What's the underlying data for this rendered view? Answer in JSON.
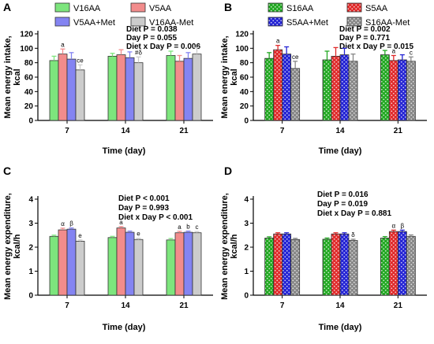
{
  "chart_data": [
    {
      "panel": "A",
      "type": "bar",
      "xlabel": "Time (day)",
      "ylabel": "Mean energy intake, kcal",
      "ylim": [
        0,
        120
      ],
      "yticks": [
        0,
        20,
        40,
        60,
        80,
        100,
        120
      ],
      "categories": [
        "7",
        "14",
        "21"
      ],
      "legend": [
        "V16AA",
        "V5AA",
        "V5AA+Met",
        "V16AA-Met"
      ],
      "stats": [
        "Diet P = 0.038",
        "Day P = 0.055",
        "Diet x Day P = 0.006"
      ],
      "series": [
        {
          "name": "V16AA",
          "values": [
            83,
            89,
            90
          ],
          "errors": [
            6,
            4,
            6
          ],
          "color": "#7de57d",
          "pattern": "solid"
        },
        {
          "name": "V5AA",
          "values": [
            92,
            91,
            82
          ],
          "errors": [
            7,
            7,
            8
          ],
          "color": "#f28c8c",
          "pattern": "solid"
        },
        {
          "name": "V5AA+Met",
          "values": [
            85,
            87,
            86
          ],
          "errors": [
            9,
            8,
            8
          ],
          "color": "#8484f2",
          "pattern": "solid"
        },
        {
          "name": "V16AA-Met",
          "values": [
            70,
            80,
            92
          ],
          "errors": [
            7,
            8,
            9
          ],
          "color": "#cccccc",
          "pattern": "solid"
        }
      ],
      "annotations": [
        {
          "category": "7",
          "series": "V5AA",
          "text": "a"
        },
        {
          "category": "7",
          "series": "V16AA-Met",
          "text": "ce"
        },
        {
          "category": "14",
          "series": "V16AA-Met",
          "text": "#δ"
        }
      ]
    },
    {
      "panel": "B",
      "type": "bar",
      "xlabel": "Time (day)",
      "ylabel": "Mean energy intake, kcal",
      "ylim": [
        0,
        120
      ],
      "yticks": [
        0,
        20,
        40,
        60,
        80,
        100,
        120
      ],
      "categories": [
        "7",
        "14",
        "21"
      ],
      "legend": [
        "S16AA",
        "S5AA",
        "S5AA+Met",
        "S16AA-Met"
      ],
      "stats": [
        "Diet P = 0.002",
        "Day P = 0.771",
        "Diet x Day P = 0.015"
      ],
      "series": [
        {
          "name": "S16AA",
          "values": [
            86,
            84,
            91
          ],
          "errors": [
            8,
            12,
            6
          ],
          "color": "#22a822",
          "pattern": "dots"
        },
        {
          "name": "S5AA",
          "values": [
            98,
            89,
            83
          ],
          "errors": [
            6,
            12,
            7
          ],
          "color": "#e02b2b",
          "pattern": "dots"
        },
        {
          "name": "S5AA+Met",
          "values": [
            92,
            91,
            84
          ],
          "errors": [
            10,
            9,
            7
          ],
          "color": "#2424d4",
          "pattern": "dots"
        },
        {
          "name": "S16AA-Met",
          "values": [
            72,
            82,
            82
          ],
          "errors": [
            10,
            10,
            6
          ],
          "color": "#888888",
          "pattern": "dots"
        }
      ],
      "annotations": [
        {
          "category": "7",
          "series": "S5AA",
          "text": "a"
        },
        {
          "category": "7",
          "series": "S16AA-Met",
          "text": "ce"
        },
        {
          "category": "21",
          "series": "S5AA",
          "text": "a"
        },
        {
          "category": "21",
          "series": "S16AA-Met",
          "text": "c"
        }
      ]
    },
    {
      "panel": "C",
      "type": "bar",
      "xlabel": "Time (day)",
      "ylabel": "Mean energy expenditure, kcal/h",
      "ylim": [
        0,
        4
      ],
      "yticks": [
        0,
        1,
        2,
        3,
        4
      ],
      "categories": [
        "7",
        "14",
        "21"
      ],
      "stats": [
        "Diet P < 0.001",
        "Day P = 0.993",
        "Diet x Day P < 0.001"
      ],
      "series": [
        {
          "name": "V16AA",
          "values": [
            2.45,
            2.4,
            2.3
          ],
          "errors": [
            0.05,
            0.05,
            0.06
          ],
          "color": "#7de57d",
          "pattern": "solid"
        },
        {
          "name": "V5AA",
          "values": [
            2.72,
            2.8,
            2.6
          ],
          "errors": [
            0.07,
            0.06,
            0.06
          ],
          "color": "#f28c8c",
          "pattern": "solid"
        },
        {
          "name": "V5AA+Met",
          "values": [
            2.75,
            2.62,
            2.62
          ],
          "errors": [
            0.05,
            0.05,
            0.05
          ],
          "color": "#8484f2",
          "pattern": "solid"
        },
        {
          "name": "V16AA-Met",
          "values": [
            2.25,
            2.32,
            2.6
          ],
          "errors": [
            0.05,
            0.05,
            0.05
          ],
          "color": "#cccccc",
          "pattern": "solid"
        }
      ],
      "annotations": [
        {
          "category": "7",
          "series": "V5AA",
          "text": "α"
        },
        {
          "category": "7",
          "series": "V5AA+Met",
          "text": "β"
        },
        {
          "category": "7",
          "series": "V16AA-Met",
          "text": "e"
        },
        {
          "category": "14",
          "series": "V5AA",
          "text": "a"
        },
        {
          "category": "14",
          "series": "V16AA-Met",
          "text": "e"
        },
        {
          "category": "21",
          "series": "V5AA",
          "text": "a"
        },
        {
          "category": "21",
          "series": "V5AA+Met",
          "text": "b"
        },
        {
          "category": "21",
          "series": "V16AA-Met",
          "text": "c"
        }
      ]
    },
    {
      "panel": "D",
      "type": "bar",
      "xlabel": "Time (day)",
      "ylabel": "Mean energy expenditure, kcal/h",
      "ylim": [
        0,
        4
      ],
      "yticks": [
        0,
        1,
        2,
        3,
        4
      ],
      "categories": [
        "7",
        "14",
        "21"
      ],
      "stats": [
        "Diet P = 0.016",
        "Day P = 0.019",
        "Diet x Day P = 0.881"
      ],
      "series": [
        {
          "name": "S16AA",
          "values": [
            2.38,
            2.33,
            2.38
          ],
          "errors": [
            0.05,
            0.05,
            0.06
          ],
          "color": "#22a822",
          "pattern": "dots"
        },
        {
          "name": "S5AA",
          "values": [
            2.55,
            2.55,
            2.65
          ],
          "errors": [
            0.05,
            0.05,
            0.06
          ],
          "color": "#e02b2b",
          "pattern": "dots"
        },
        {
          "name": "S5AA+Met",
          "values": [
            2.55,
            2.55,
            2.65
          ],
          "errors": [
            0.05,
            0.05,
            0.06
          ],
          "color": "#2424d4",
          "pattern": "dots"
        },
        {
          "name": "S16AA-Met",
          "values": [
            2.32,
            2.28,
            2.45
          ],
          "errors": [
            0.05,
            0.05,
            0.06
          ],
          "color": "#888888",
          "pattern": "dots"
        }
      ],
      "annotations": [
        {
          "category": "14",
          "series": "S16AA-Met",
          "text": "δ"
        },
        {
          "category": "21",
          "series": "S5AA",
          "text": "α"
        },
        {
          "category": "21",
          "series": "S5AA+Met",
          "text": "β"
        }
      ]
    }
  ]
}
